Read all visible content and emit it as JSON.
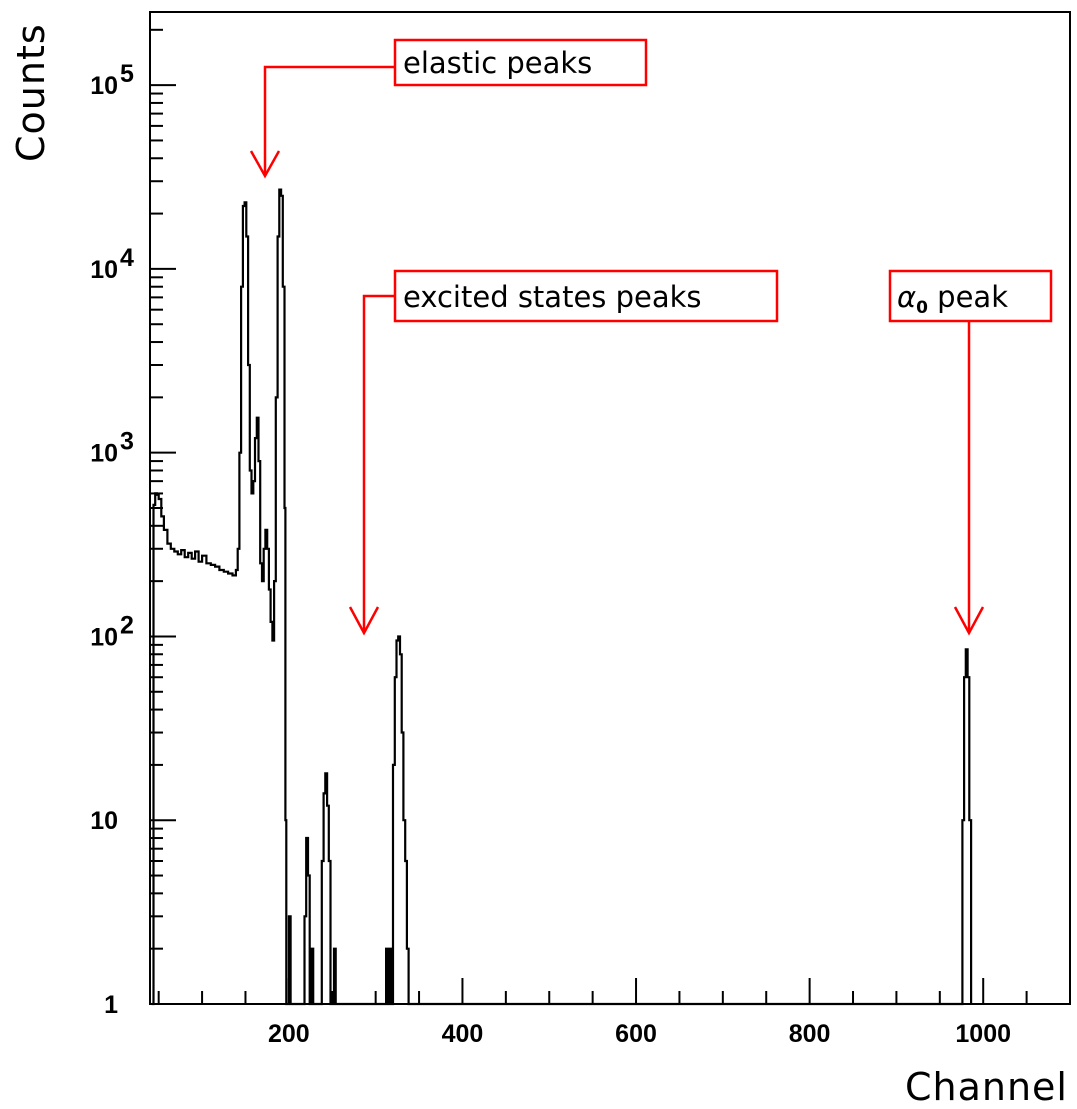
{
  "chart_data": {
    "type": "line",
    "xlabel": "Channel",
    "ylabel": "Counts",
    "x_scale": "linear",
    "y_scale": "log",
    "xlim": [
      40,
      1100
    ],
    "ylim": [
      1,
      250000
    ],
    "x_ticks": [
      200,
      400,
      600,
      800,
      1000
    ],
    "x_tick_labels": [
      "200",
      "400",
      "600",
      "800",
      "1000"
    ],
    "y_ticks": [
      1,
      10,
      100,
      1000,
      10000,
      100000
    ],
    "y_tick_labels": [
      {
        "base": "1",
        "exp": ""
      },
      {
        "base": "10",
        "exp": ""
      },
      {
        "base": "10",
        "exp": "2"
      },
      {
        "base": "10",
        "exp": "3"
      },
      {
        "base": "10",
        "exp": "4"
      },
      {
        "base": "10",
        "exp": "5"
      }
    ],
    "grid": false,
    "line_color": "#000000",
    "annotation_color": "#ff0000",
    "series": [
      {
        "values": [
          [
            42,
            1
          ],
          [
            44,
            520
          ],
          [
            46,
            600
          ],
          [
            48,
            590
          ],
          [
            50,
            560
          ],
          [
            53,
            450
          ],
          [
            56,
            380
          ],
          [
            60,
            320
          ],
          [
            64,
            300
          ],
          [
            68,
            290
          ],
          [
            72,
            280
          ],
          [
            76,
            295
          ],
          [
            80,
            270
          ],
          [
            84,
            285
          ],
          [
            88,
            265
          ],
          [
            92,
            290
          ],
          [
            96,
            255
          ],
          [
            100,
            275
          ],
          [
            105,
            250
          ],
          [
            110,
            245
          ],
          [
            115,
            240
          ],
          [
            120,
            230
          ],
          [
            125,
            225
          ],
          [
            130,
            220
          ],
          [
            135,
            215
          ],
          [
            139,
            230
          ],
          [
            141,
            300
          ],
          [
            143,
            1000
          ],
          [
            145,
            8000
          ],
          [
            147,
            22000
          ],
          [
            149,
            23000
          ],
          [
            151,
            15000
          ],
          [
            153,
            3000
          ],
          [
            155,
            800
          ],
          [
            157,
            600
          ],
          [
            159,
            700
          ],
          [
            161,
            1200
          ],
          [
            163,
            1550
          ],
          [
            165,
            900
          ],
          [
            167,
            250
          ],
          [
            169,
            200
          ],
          [
            171,
            300
          ],
          [
            173,
            380
          ],
          [
            175,
            300
          ],
          [
            177,
            180
          ],
          [
            179,
            120
          ],
          [
            181,
            95
          ],
          [
            183,
            200
          ],
          [
            185,
            2000
          ],
          [
            187,
            15000
          ],
          [
            189,
            27000
          ],
          [
            191,
            25000
          ],
          [
            193,
            8000
          ],
          [
            195,
            500
          ],
          [
            196,
            10
          ],
          [
            197,
            1
          ],
          [
            200,
            3
          ],
          [
            202,
            1
          ],
          [
            216,
            1
          ],
          [
            218,
            3
          ],
          [
            220,
            8
          ],
          [
            222,
            5
          ],
          [
            224,
            1
          ],
          [
            226,
            2
          ],
          [
            228,
            1
          ],
          [
            236,
            1
          ],
          [
            238,
            6
          ],
          [
            240,
            14
          ],
          [
            242,
            18
          ],
          [
            244,
            12
          ],
          [
            246,
            6
          ],
          [
            248,
            1
          ],
          [
            252,
            2
          ],
          [
            254,
            1
          ],
          [
            310,
            1
          ],
          [
            312,
            2
          ],
          [
            314,
            1
          ],
          [
            316,
            2
          ],
          [
            318,
            1
          ],
          [
            320,
            20
          ],
          [
            322,
            60
          ],
          [
            324,
            95
          ],
          [
            326,
            100
          ],
          [
            328,
            80
          ],
          [
            330,
            30
          ],
          [
            332,
            10
          ],
          [
            334,
            6
          ],
          [
            336,
            2
          ],
          [
            338,
            1
          ],
          [
            974,
            1
          ],
          [
            976,
            10
          ],
          [
            978,
            60
          ],
          [
            980,
            85
          ],
          [
            982,
            60
          ],
          [
            984,
            10
          ],
          [
            986,
            1
          ]
        ]
      }
    ],
    "annotations": [
      {
        "text": "elastic peaks",
        "arrow_to": [
          170,
          35000
        ]
      },
      {
        "text": "excited states peaks",
        "arrow_to": [
          284,
          110
        ]
      },
      {
        "text_main": "α",
        "text_sub": "0",
        "text_rest": " peak",
        "arrow_to": [
          987,
          110
        ]
      }
    ]
  }
}
